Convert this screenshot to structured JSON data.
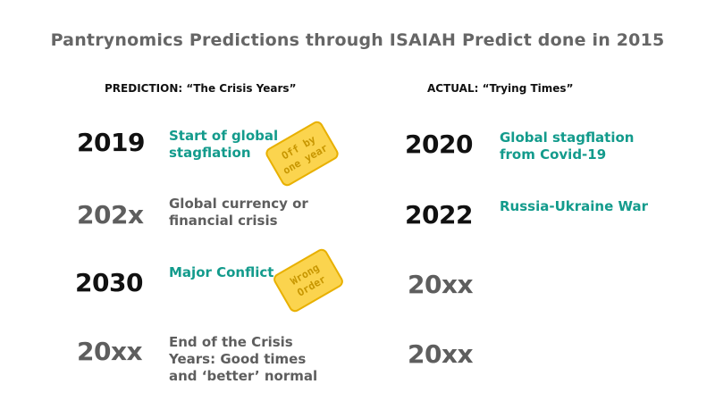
{
  "title": "Pantrynomics Predictions through ISAIAH Predict done in 2015",
  "left_header": "PREDICTION: “The Crisis Years”",
  "right_header": "ACTUAL: “Trying Times”",
  "predictions": [
    {
      "year": "2019",
      "line1": "Start of global",
      "line2": "stagflation",
      "line3": ""
    },
    {
      "year": "202x",
      "line1": "Global currency or",
      "line2": "financial crisis",
      "line3": ""
    },
    {
      "year": "2030",
      "line1": "Major Conflict",
      "line2": "",
      "line3": ""
    },
    {
      "year": "20xx",
      "line1": "End of the Crisis",
      "line2": "Years: Good times",
      "line3": "and ‘better’ normal"
    }
  ],
  "actuals": [
    {
      "year": "2020",
      "line1": "Global stagflation",
      "line2": "from Covid-19"
    },
    {
      "year": "2022",
      "line1": "Russia-Ukraine War",
      "line2": ""
    },
    {
      "year": "20xx",
      "line1": "",
      "line2": ""
    },
    {
      "year": "20xx",
      "line1": "",
      "line2": ""
    }
  ],
  "stickers": {
    "off_by_line1": "Off by",
    "off_by_line2": "one year",
    "wrong_line1": "Wrong",
    "wrong_line2": "Order"
  },
  "colors": {
    "teal": "#139b8c",
    "gray": "#5e5e5e",
    "sticker": "#fbd44e"
  }
}
